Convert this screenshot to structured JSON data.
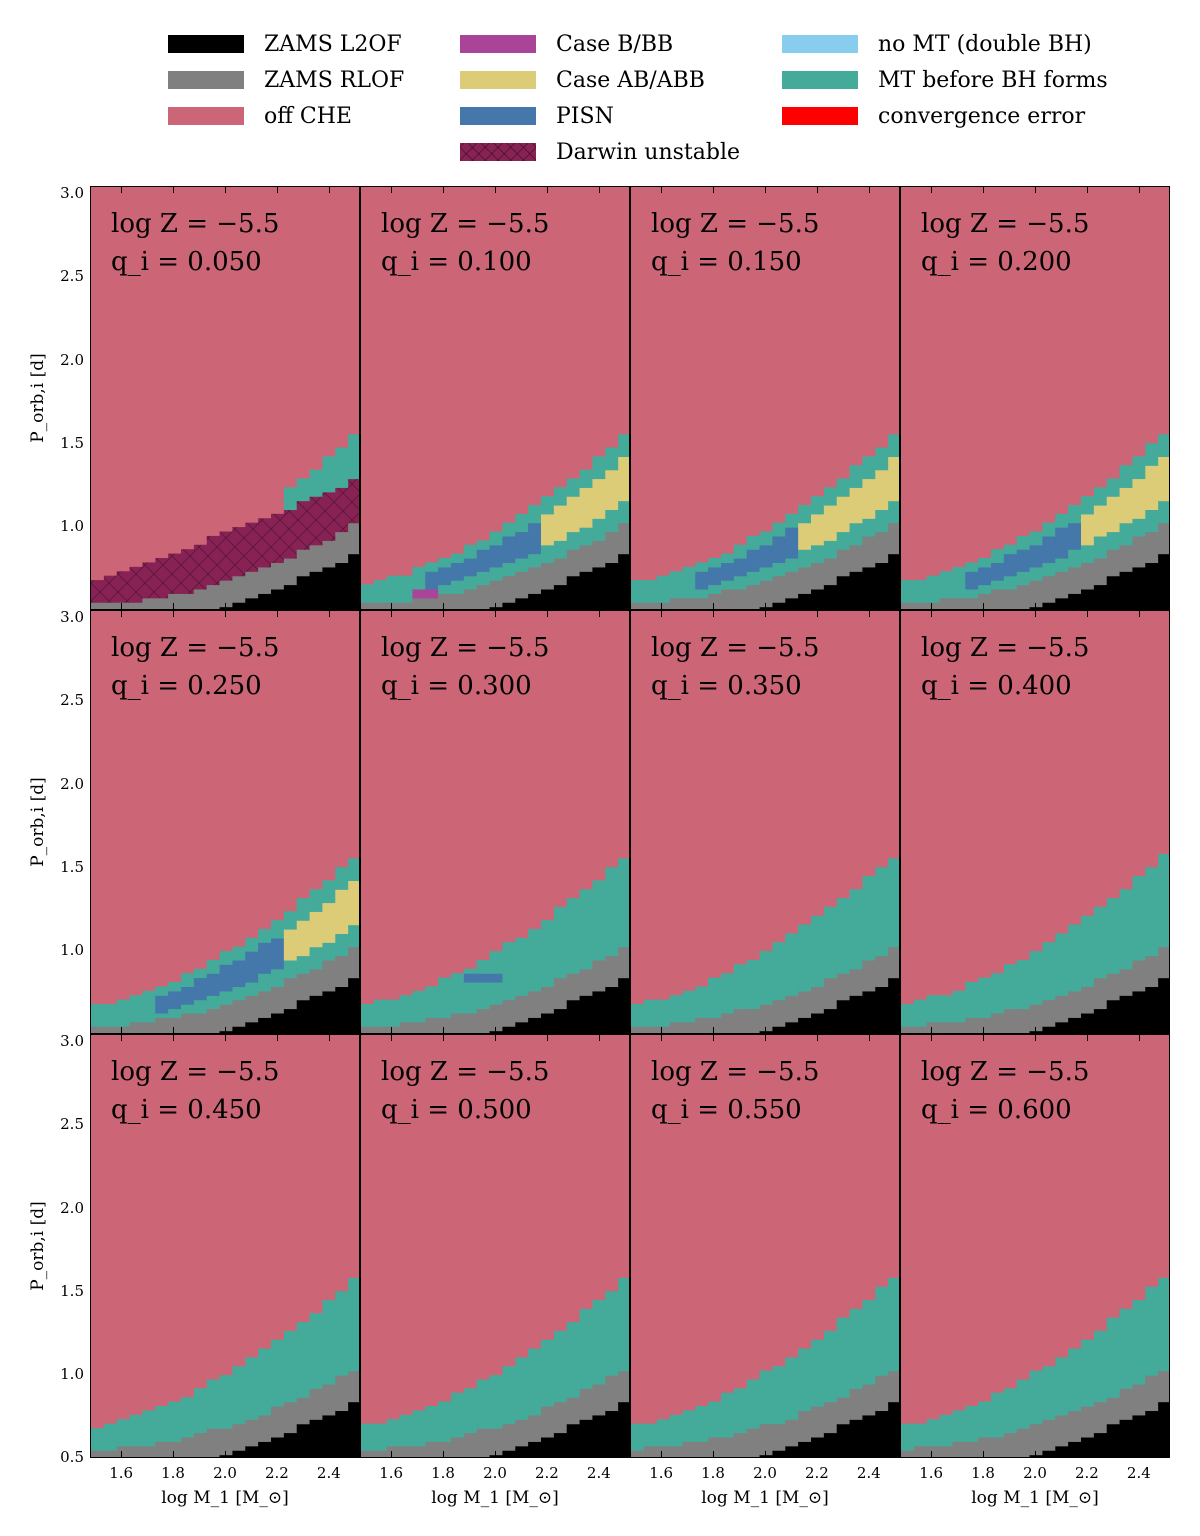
{
  "legend": {
    "items": [
      {
        "label": "ZAMS L2OF",
        "color": "#000000"
      },
      {
        "label": "ZAMS RLOF",
        "color": "#808080"
      },
      {
        "label": "off CHE",
        "color": "#cc6677"
      },
      {
        "label": "Case B/BB",
        "color": "#aa4499"
      },
      {
        "label": "Case AB/ABB",
        "color": "#ddcc77"
      },
      {
        "label": "PISN",
        "color": "#4477aa"
      },
      {
        "label": "Darwin unstable",
        "color": "#882255",
        "hatch": true
      },
      {
        "label": "no MT (double BH)",
        "color": "#88ccee"
      },
      {
        "label": "MT before BH forms",
        "color": "#44aa99"
      },
      {
        "label": "convergence error",
        "color": "#ff0000"
      }
    ]
  },
  "axes": {
    "ylabel": "P_orb,i [d]",
    "xlabel": "log M_1 [M_⊙]",
    "xticks": [
      "1.6",
      "1.8",
      "2.0",
      "2.2",
      "2.4"
    ],
    "yticks_top": [
      "1.0",
      "1.5",
      "2.0",
      "2.5",
      "3.0"
    ],
    "yticks_bottom": [
      "0.5",
      "1.0",
      "1.5",
      "2.0",
      "2.5",
      "3.0"
    ]
  },
  "chart_data": {
    "type": "heatmap",
    "x_range": [
      1.48,
      2.52
    ],
    "y_range": [
      0.5,
      3.05
    ],
    "colors": {
      "L2OF": "#000000",
      "RLOF": "#808080",
      "offCHE": "#cc6677",
      "CaseB": "#aa4499",
      "CaseAB": "#ddcc77",
      "PISN": "#4477aa",
      "Darwin": "#882255",
      "noMT": "#88ccee",
      "MT": "#44aa99",
      "error": "#ff0000"
    },
    "panels": [
      {
        "annotation_z": "log Z = −5.5",
        "annotation_q": "q_i = 0.050",
        "q": 0.05
      },
      {
        "annotation_z": "log Z = −5.5",
        "annotation_q": "q_i = 0.100",
        "q": 0.1
      },
      {
        "annotation_z": "log Z = −5.5",
        "annotation_q": "q_i = 0.150",
        "q": 0.15
      },
      {
        "annotation_z": "log Z = −5.5",
        "annotation_q": "q_i = 0.200",
        "q": 0.2
      },
      {
        "annotation_z": "log Z = −5.5",
        "annotation_q": "q_i = 0.250",
        "q": 0.25
      },
      {
        "annotation_z": "log Z = −5.5",
        "annotation_q": "q_i = 0.300",
        "q": 0.3
      },
      {
        "annotation_z": "log Z = −5.5",
        "annotation_q": "q_i = 0.350",
        "q": 0.35
      },
      {
        "annotation_z": "log Z = −5.5",
        "annotation_q": "q_i = 0.400",
        "q": 0.4
      },
      {
        "annotation_z": "log Z = −5.5",
        "annotation_q": "q_i = 0.450",
        "q": 0.45
      },
      {
        "annotation_z": "log Z = −5.5",
        "annotation_q": "q_i = 0.500",
        "q": 0.5
      },
      {
        "annotation_z": "log Z = −5.5",
        "annotation_q": "q_i = 0.550",
        "q": 0.55
      },
      {
        "annotation_z": "log Z = −5.5",
        "annotation_q": "q_i = 0.600",
        "q": 0.6
      }
    ]
  }
}
